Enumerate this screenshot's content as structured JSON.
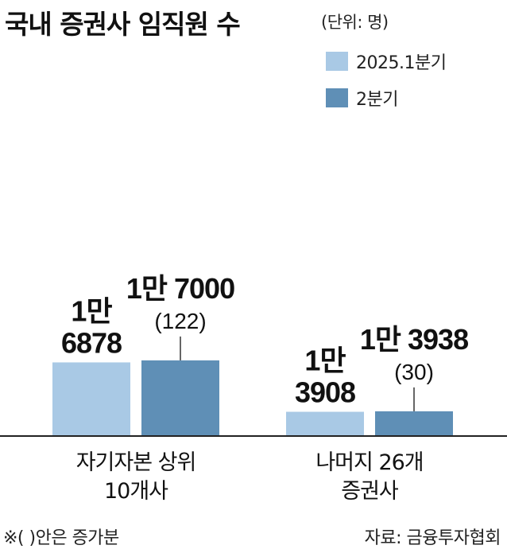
{
  "header": {
    "title": "국내 증권사 임직원 수",
    "unit": "(단위: 명)"
  },
  "colors": {
    "series1": "#a9c9e5",
    "series2": "#5f8fb6",
    "axis": "#222222"
  },
  "chart_data": {
    "type": "bar",
    "categories": [
      "자기자본 상위\n10개사",
      "나머지 26개\n증권사"
    ],
    "series": [
      {
        "name": "2025.1분기",
        "values": [
          16878,
          13908
        ],
        "labels": [
          "1만\n6878",
          "1만\n3908"
        ]
      },
      {
        "name": "2분기",
        "values": [
          17000,
          13938
        ],
        "labels": [
          "1만 7000",
          "1만 3938"
        ],
        "changes": [
          "(122)",
          "(30)"
        ]
      }
    ],
    "ylim": [
      0,
      17000
    ],
    "grid": false,
    "legend_position": "top-right"
  },
  "footer": {
    "note": "※( )안은 증가분",
    "source": "자료: 금융투자협회"
  }
}
